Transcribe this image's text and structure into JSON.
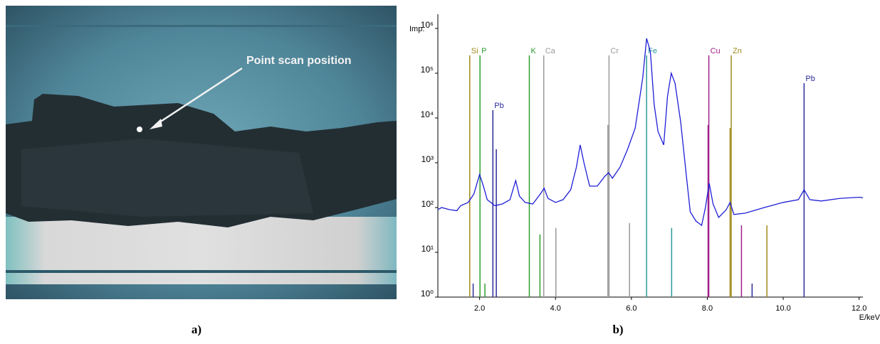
{
  "panel_a": {
    "label": "a)",
    "annotation": "Point scan position"
  },
  "chart_data": {
    "type": "line",
    "panel_label": "b)",
    "x_label": "E/keV",
    "y_label": "Imp.",
    "log_y": true,
    "xlim": [
      0.9,
      12.1
    ],
    "ylim": [
      1,
      1000000
    ],
    "xticks": [
      {
        "value": 2,
        "label": "2.0"
      },
      {
        "value": 4,
        "label": "4.0"
      },
      {
        "value": 6,
        "label": "6.0"
      },
      {
        "value": 8,
        "label": "8.0"
      },
      {
        "value": 10,
        "label": "10.0"
      },
      {
        "value": 12,
        "label": "12.0"
      }
    ],
    "yticks": [
      {
        "value": 1,
        "label": "10⁰"
      },
      {
        "value": 10,
        "label": "10¹"
      },
      {
        "value": 100,
        "label": "10²"
      },
      {
        "value": 1000,
        "label": "10³"
      },
      {
        "value": 10000,
        "label": "10⁴"
      },
      {
        "value": 100000,
        "label": "10⁵"
      },
      {
        "value": 1000000,
        "label": "10⁶"
      }
    ],
    "series": [
      {
        "color": "#1f1fd6",
        "x": [
          0.9,
          1.0,
          1.2,
          1.4,
          1.5,
          1.7,
          1.85,
          2.0,
          2.1,
          2.2,
          2.4,
          2.6,
          2.8,
          2.95,
          3.05,
          3.2,
          3.4,
          3.6,
          3.7,
          3.8,
          4.0,
          4.2,
          4.4,
          4.55,
          4.65,
          4.75,
          4.9,
          5.1,
          5.3,
          5.4,
          5.5,
          5.7,
          5.9,
          6.1,
          6.3,
          6.4,
          6.5,
          6.6,
          6.7,
          6.85,
          6.95,
          7.05,
          7.15,
          7.3,
          7.45,
          7.55,
          7.7,
          7.85,
          7.95,
          8.05,
          8.15,
          8.3,
          8.5,
          8.6,
          8.7,
          9.0,
          9.5,
          10.0,
          10.4,
          10.55,
          10.7,
          11.0,
          11.5,
          12.0,
          12.1
        ],
        "values": [
          90,
          100,
          90,
          85,
          110,
          130,
          200,
          550,
          300,
          150,
          110,
          120,
          150,
          400,
          180,
          130,
          120,
          200,
          270,
          160,
          130,
          150,
          250,
          800,
          2500,
          1000,
          300,
          300,
          500,
          600,
          450,
          800,
          2000,
          6000,
          80000,
          600000,
          300000,
          20000,
          5000,
          2500,
          30000,
          100000,
          60000,
          8000,
          500,
          80,
          50,
          40,
          100,
          350,
          120,
          60,
          90,
          130,
          70,
          75,
          100,
          130,
          150,
          250,
          150,
          140,
          160,
          170,
          165
        ]
      }
    ],
    "element_lines": [
      {
        "name": "Si",
        "color": "#a08a1c",
        "x": [
          1.74
        ],
        "values": [
          250000
        ]
      },
      {
        "name": "P",
        "color": "#2e9e2e",
        "x": [
          2.01,
          2.14
        ],
        "values": [
          250000,
          2
        ]
      },
      {
        "name": "Pb",
        "color": "#2b2b9a",
        "x": [
          2.35,
          2.44,
          1.83,
          9.18
        ],
        "values": [
          15000,
          2000,
          2,
          2
        ]
      },
      {
        "name": "K",
        "color": "#2e9e2e",
        "x": [
          3.31,
          3.59
        ],
        "values": [
          250000,
          25
        ]
      },
      {
        "name": "Ca",
        "color": "#9a9a9a",
        "x": [
          3.69,
          4.01
        ],
        "values": [
          250000,
          35
        ]
      },
      {
        "name": "Cr",
        "color": "#9a9a9a",
        "x": [
          5.41,
          5.38,
          5.95
        ],
        "values": [
          250000,
          7000,
          45
        ]
      },
      {
        "name": "Fe",
        "color": "#2a9a9a",
        "x": [
          6.4,
          7.06
        ],
        "values": [
          250000,
          35
        ]
      },
      {
        "name": "Cu",
        "color": "#a0208a",
        "x": [
          8.04,
          8.02,
          8.9
        ],
        "values": [
          250000,
          7000,
          40
        ]
      },
      {
        "name": "Zn",
        "color": "#a08a1c",
        "x": [
          8.63,
          8.6,
          9.57
        ],
        "values": [
          250000,
          6000,
          40
        ]
      },
      {
        "name": "Pb",
        "color": "#2b2b9a",
        "x": [
          10.55
        ],
        "values": [
          60000
        ]
      }
    ]
  }
}
